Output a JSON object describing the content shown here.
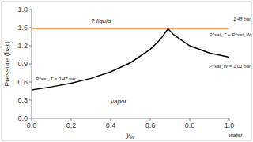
{
  "chart_data": {
    "type": "line",
    "xlabel": "yW",
    "ylabel": "Pressure (bar)",
    "xlim": [
      0,
      1
    ],
    "xticks": [
      {
        "value": 0,
        "label": "0.0"
      },
      0.2,
      0.4,
      0.6,
      0.8,
      {
        "value": 1,
        "label": "1.0"
      }
    ],
    "ylim": [
      0,
      1.8
    ],
    "yticks": [
      {
        "value": 0,
        "label": "0.0"
      },
      0.3,
      0.6,
      0.9,
      1.2,
      1.5,
      1.8
    ],
    "grid": false,
    "series": [
      {
        "color": "#000000",
        "x": [
          0,
          0.1,
          0.2,
          0.3,
          0.4,
          0.5,
          0.6,
          0.65,
          0.69,
          0.72,
          0.8,
          0.9,
          1.0
        ],
        "values": [
          0.47,
          0.52,
          0.58,
          0.66,
          0.77,
          0.92,
          1.14,
          1.3,
          1.48,
          1.38,
          1.2,
          1.08,
          1.01
        ]
      },
      {
        "color": "#f4a460",
        "x": [
          0,
          1
        ],
        "values": [
          1.48,
          1.48
        ]
      }
    ],
    "annotations": [
      "? liquid",
      "vapor",
      "1.48 bar",
      "P^sat_T + P^sat_W",
      "P^sat_W = 1.01 bar",
      "P^sat_T = 0.47 bar",
      "water"
    ]
  }
}
